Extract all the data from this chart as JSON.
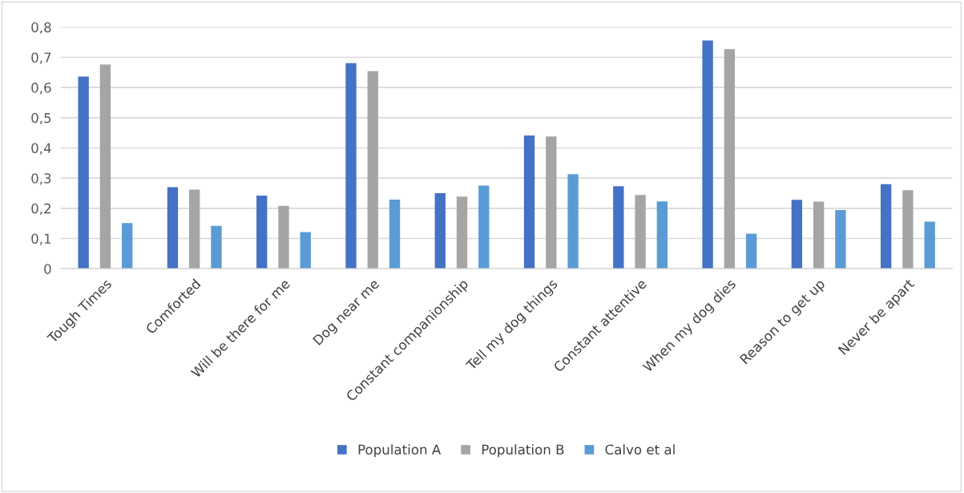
{
  "chart_data": {
    "type": "bar",
    "categories": [
      "Tough Times",
      "Comforted",
      "Will be there for me",
      "Dog near me",
      "Constant companionship",
      "Tell my dog things",
      "Constant attentive",
      "When my dog dies",
      "Reason to get up",
      "Never be apart"
    ],
    "series": [
      {
        "name": "Population A",
        "color": "#4472c4",
        "values": [
          0.636,
          0.27,
          0.242,
          0.681,
          0.25,
          0.441,
          0.273,
          0.756,
          0.228,
          0.28
        ]
      },
      {
        "name": "Population B",
        "color": "#a5a5a5",
        "values": [
          0.676,
          0.262,
          0.208,
          0.654,
          0.239,
          0.438,
          0.244,
          0.727,
          0.222,
          0.26
        ]
      },
      {
        "name": "Calvo et al",
        "color": "#5b9bd5",
        "values": [
          0.151,
          0.142,
          0.121,
          0.229,
          0.275,
          0.313,
          0.223,
          0.116,
          0.194,
          0.156
        ]
      }
    ],
    "ylim": [
      0,
      0.8
    ],
    "yticks": [
      {
        "value": 0,
        "label": "0"
      },
      {
        "value": 0.1,
        "label": "0,1"
      },
      {
        "value": 0.2,
        "label": "0,2"
      },
      {
        "value": 0.3,
        "label": "0,3"
      },
      {
        "value": 0.4,
        "label": "0,4"
      },
      {
        "value": 0.5,
        "label": "0,5"
      },
      {
        "value": 0.6,
        "label": "0,6"
      },
      {
        "value": 0.7,
        "label": "0,7"
      },
      {
        "value": 0.8,
        "label": "0,8"
      }
    ],
    "grid": "y",
    "legend": "bottom"
  }
}
